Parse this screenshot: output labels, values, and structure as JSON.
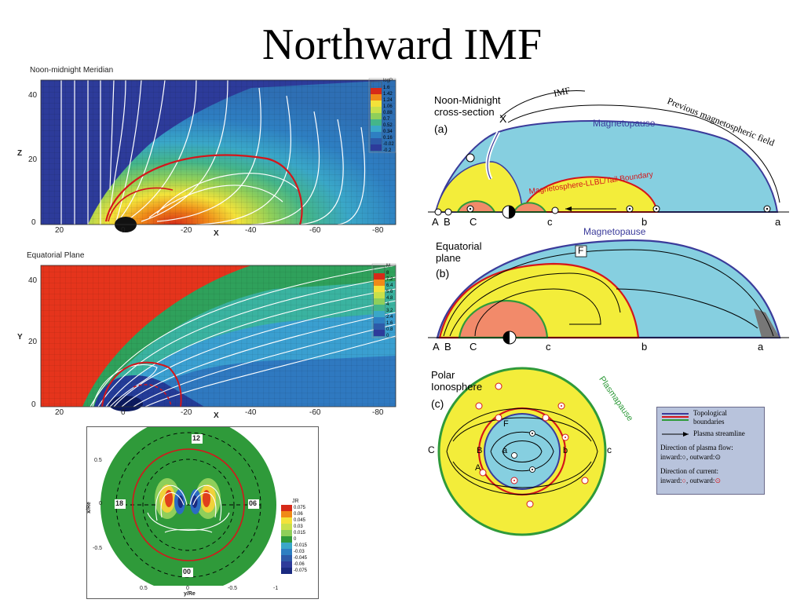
{
  "title": "Northward IMF",
  "meridian": {
    "label": "Noon-midnight Meridian",
    "y_ticks": [
      "40",
      "20",
      "0"
    ],
    "x_ticks": [
      "20",
      "0",
      "-20",
      "-40",
      "-60",
      "-80"
    ],
    "axis_y": "Z",
    "axis_x": "X",
    "legend_title": "logP",
    "legend_values": [
      "1.6",
      "1.42",
      "1.24",
      "1.06",
      "0.88",
      "0.7",
      "0.52",
      "0.34",
      "0.16",
      "-0.02",
      "-0.2"
    ]
  },
  "equatorial": {
    "label": "Equatorial Plane",
    "y_ticks": [
      "40",
      "20",
      "0"
    ],
    "x_ticks": [
      "20",
      "0",
      "-20",
      "-40",
      "-60",
      "-80"
    ],
    "axis_y": "Y",
    "axis_x": "X",
    "legend_title": "M",
    "legend_values": [
      "8",
      "7.2",
      "6.4",
      "5.6",
      "4.8",
      "4",
      "3.2",
      "2.4",
      "1.6",
      "0.8",
      "0"
    ]
  },
  "ionosphere_plot": {
    "clock_12": "12",
    "clock_18": "18",
    "clock_06": "06",
    "clock_00": "00",
    "y_ticks": [
      "0.5",
      "0",
      "-0.5"
    ],
    "x_ticks": [
      "0.5",
      "0",
      "-0.5",
      "-1"
    ],
    "axis_y": "x/Re",
    "axis_x": "y/Re",
    "legend_title": "JR",
    "legend_values": [
      "0.075",
      "0.06",
      "0.045",
      "0.03",
      "0.015",
      "0",
      "-0.015",
      "-0.03",
      "-0.045",
      "-0.06",
      "-0.075"
    ]
  },
  "schematic_a": {
    "heading_line1": "Noon-Midnight",
    "heading_line2": "cross-section",
    "tag": "(a)",
    "x_label": "X",
    "imf": "IMF",
    "prev_field": "Previous magnetospheric field",
    "magnetopause": "Magnetopause",
    "boundary": "Magnetosphere-LLBL/Tail Boundary",
    "pts": [
      "A",
      "B",
      "C",
      "c",
      "b",
      "a"
    ]
  },
  "schematic_b": {
    "heading_line1": "Equatorial",
    "heading_line2": "plane",
    "tag": "(b)",
    "magnetopause": "Magnetopause",
    "f_label": "F",
    "pts": [
      "A",
      "B",
      "C",
      "c",
      "b",
      "a"
    ]
  },
  "schematic_c": {
    "heading_line1": "Polar",
    "heading_line2": "Ionosphere",
    "tag": "(c)",
    "plasmapause": "Plasmapause",
    "pts_outer_left": "C",
    "pts_outer_right": "c",
    "pt_B": "B",
    "pt_b": "b",
    "pt_A": "A",
    "pt_a": "a",
    "pt_F": "F"
  },
  "legend_box": {
    "topo_line1": "Topological",
    "topo_line2": "boundaries",
    "streamline": "Plasma streamline",
    "flow_line1": "Direction of plasma flow:",
    "flow_line2": "inward:",
    "flow_line2b": ", outward:",
    "curr_line1": "Direction of current:",
    "curr_line2": "inward:",
    "curr_line2b": ", outward:"
  }
}
